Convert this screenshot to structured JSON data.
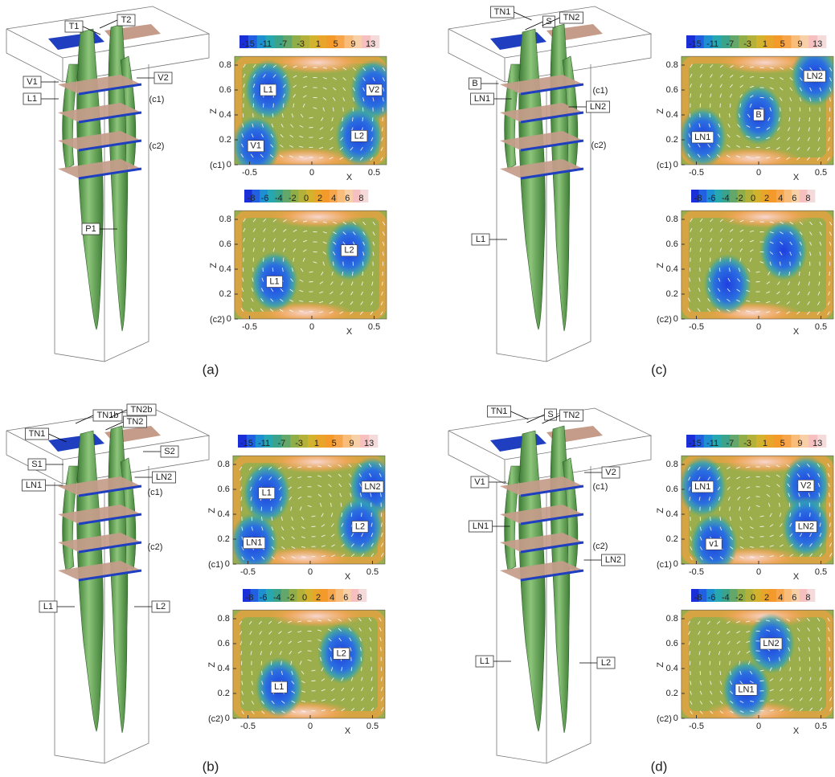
{
  "panels": [
    {
      "label": "(a)",
      "view_labels": [
        "T1",
        "T2",
        "V1",
        "V2",
        "L1",
        "(c1)",
        "(c2)",
        "P1"
      ],
      "plots": [
        {
          "slice_label": "(c1)",
          "colorbar_ticks": [
            -15,
            -11,
            -7,
            -3,
            1,
            5,
            9,
            13
          ],
          "x_label": "X",
          "y_label": "Z",
          "xticks": [
            -0.5,
            0,
            0.5
          ],
          "yticks": [
            0,
            0.2,
            0.4,
            0.6,
            0.8
          ],
          "annotations": [
            "L1",
            "V2",
            "L2",
            "V1"
          ]
        },
        {
          "slice_label": "(c2)",
          "colorbar_ticks": [
            -8,
            -6,
            -4,
            -2,
            0,
            2,
            4,
            6,
            8
          ],
          "x_label": "X",
          "y_label": "Z",
          "xticks": [
            -0.5,
            0,
            0.5
          ],
          "yticks": [
            0,
            0.2,
            0.4,
            0.6,
            0.8
          ],
          "annotations": [
            "L2",
            "L1"
          ]
        }
      ]
    },
    {
      "label": "(b)",
      "view_labels": [
        "TN1b",
        "TN2b",
        "TN2",
        "TN1",
        "S2",
        "S1",
        "LN1",
        "LN2",
        "(c1)",
        "(c2)",
        "L1",
        "L2"
      ],
      "plots": [
        {
          "slice_label": "(c1)",
          "colorbar_ticks": [
            -15,
            -11,
            -7,
            -3,
            1,
            5,
            9,
            13
          ],
          "x_label": "X",
          "y_label": "Z",
          "xticks": [
            -0.5,
            0,
            0.5
          ],
          "yticks": [
            0,
            0.2,
            0.4,
            0.6,
            0.8
          ],
          "annotations": [
            "L1",
            "LN2",
            "L2",
            "LN1"
          ]
        },
        {
          "slice_label": "(c2)",
          "colorbar_ticks": [
            -8,
            -6,
            -4,
            -2,
            0,
            2,
            4,
            6,
            8
          ],
          "x_label": "X",
          "y_label": "Z",
          "xticks": [
            -0.5,
            0,
            0.5
          ],
          "yticks": [
            0,
            0.2,
            0.4,
            0.6,
            0.8
          ],
          "annotations": [
            "L2",
            "L1"
          ]
        }
      ]
    },
    {
      "label": "(c)",
      "view_labels": [
        "TN1",
        "S",
        "TN2",
        "B",
        "LN1",
        "(c1)",
        "LN2",
        "(c2)",
        "L1"
      ],
      "plots": [
        {
          "slice_label": "(c1)",
          "colorbar_ticks": [
            -15,
            -11,
            -7,
            -3,
            1,
            5,
            9,
            13
          ],
          "x_label": "X",
          "y_label": "Z",
          "xticks": [
            -0.5,
            0,
            0.5
          ],
          "yticks": [
            0,
            0.2,
            0.4,
            0.6,
            0.8
          ],
          "annotations": [
            "LN2",
            "B",
            "LN1"
          ]
        },
        {
          "slice_label": "(c2)",
          "colorbar_ticks": [
            -8,
            -6,
            -4,
            -2,
            0,
            2,
            4,
            6,
            8
          ],
          "x_label": "X",
          "y_label": "Z",
          "xticks": [
            -0.5,
            0,
            0.5
          ],
          "yticks": [
            0,
            0.2,
            0.4,
            0.6,
            0.8
          ],
          "annotations": []
        }
      ]
    },
    {
      "label": "(d)",
      "view_labels": [
        "TN1",
        "S",
        "TN2",
        "V1",
        "V2",
        "(c1)",
        "LN1",
        "(c2)",
        "LN2",
        "L1",
        "L2"
      ],
      "plots": [
        {
          "slice_label": "(c1)",
          "colorbar_ticks": [
            -15,
            -11,
            -7,
            -3,
            1,
            5,
            9,
            13
          ],
          "x_label": "X",
          "y_label": "Z",
          "xticks": [
            -0.5,
            0,
            0.5
          ],
          "yticks": [
            0,
            0.2,
            0.4,
            0.6,
            0.8
          ],
          "annotations": [
            "LN1",
            "V2",
            "LN2",
            "v1"
          ]
        },
        {
          "slice_label": "(c2)",
          "colorbar_ticks": [
            -8,
            -6,
            -4,
            -2,
            0,
            2,
            4,
            6,
            8
          ],
          "x_label": "X",
          "y_label": "Z",
          "xticks": [
            -0.5,
            0,
            0.5
          ],
          "yticks": [
            0,
            0.2,
            0.4,
            0.6,
            0.8
          ],
          "annotations": [
            "LN2",
            "LN1"
          ]
        }
      ]
    }
  ]
}
